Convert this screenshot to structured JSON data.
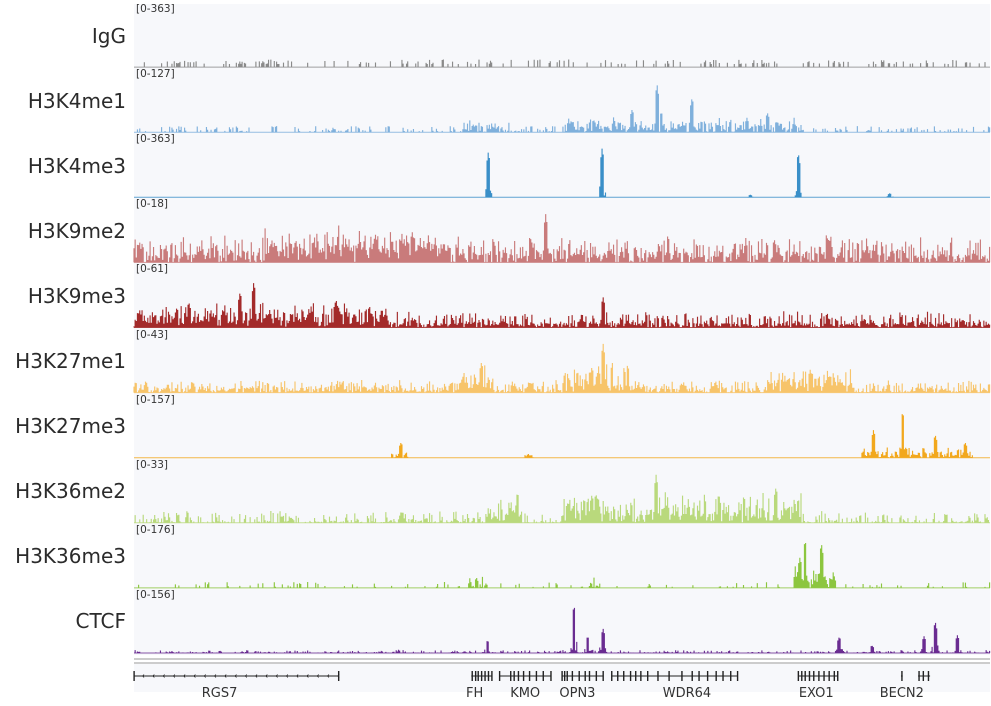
{
  "colors": {
    "track_background": "#f7f8fb",
    "baseline": "#b5b5b5",
    "gene_line": "#222222"
  },
  "chart_data": {
    "type": "area",
    "tracks": [
      {
        "name": "IgG",
        "range_label": "[0-363]",
        "ylim": [
          0,
          363
        ],
        "color": "#8a8a8a",
        "peaks": [],
        "pattern": "sparse",
        "density": 0.22,
        "base": 0.06,
        "noise": 0.09,
        "start": 0.0,
        "end": 1.0,
        "regions": []
      },
      {
        "name": "H3K4me1",
        "range_label": "[0-127]",
        "ylim": [
          0,
          127
        ],
        "color": "#7fb0dc",
        "peaks": [
          [
            0.611,
            0.95
          ],
          [
            0.652,
            0.68
          ],
          [
            0.582,
            0.45
          ],
          [
            0.74,
            0.38
          ],
          [
            0.616,
            0.4
          ]
        ],
        "pattern": "sparse",
        "density": 0.3,
        "base": 0.02,
        "noise": 0.1,
        "start": 0.0,
        "end": 1.0,
        "regions": [
          [
            0.385,
            0.44,
            0.15
          ],
          [
            0.5,
            0.78,
            0.22
          ]
        ]
      },
      {
        "name": "H3K4me3",
        "range_label": "[0-363]",
        "ylim": [
          0,
          363
        ],
        "color": "#3a8fc8",
        "peaks": [
          [
            0.414,
            0.9
          ],
          [
            0.547,
            0.98
          ],
          [
            0.776,
            0.88
          ],
          [
            0.883,
            0.08
          ],
          [
            0.72,
            0.05
          ]
        ],
        "pattern": "none",
        "density": 0.0,
        "base": 0.0,
        "noise": 0.0,
        "start": 0.0,
        "end": 1.0,
        "regions": []
      },
      {
        "name": "H3K9me2",
        "range_label": "[0-18]",
        "ylim": [
          0,
          18
        ],
        "color": "#c97b7b",
        "peaks": [
          [
            0.481,
            0.95
          ],
          [
            0.748,
            0.45
          ],
          [
            0.325,
            0.6
          ],
          [
            0.282,
            0.55
          ]
        ],
        "pattern": "dense",
        "density": 0.9,
        "base": 0.2,
        "noise": 0.35,
        "start": 0.0,
        "end": 1.0,
        "regions": [
          [
            0.15,
            0.37,
            0.25
          ]
        ]
      },
      {
        "name": "H3K9me3",
        "range_label": "[0-61]",
        "ylim": [
          0,
          61
        ],
        "color": "#a32a2a",
        "peaks": [
          [
            0.14,
            0.9
          ],
          [
            0.124,
            0.7
          ],
          [
            0.548,
            0.6
          ],
          [
            0.064,
            0.5
          ],
          [
            0.236,
            0.55
          ]
        ],
        "pattern": "dense",
        "density": 0.95,
        "base": 0.08,
        "noise": 0.25,
        "start": 0.0,
        "end": 1.0,
        "regions": [
          [
            0.0,
            0.3,
            0.25
          ]
        ]
      },
      {
        "name": "H3K27me1",
        "range_label": "[0-43]",
        "ylim": [
          0,
          43
        ],
        "color": "#f7c46a",
        "peaks": [
          [
            0.548,
            0.97
          ],
          [
            0.406,
            0.6
          ],
          [
            0.535,
            0.5
          ],
          [
            0.79,
            0.45
          ]
        ],
        "pattern": "dense",
        "density": 0.85,
        "base": 0.05,
        "noise": 0.2,
        "start": 0.0,
        "end": 1.0,
        "regions": [
          [
            0.38,
            0.42,
            0.35
          ],
          [
            0.5,
            0.58,
            0.4
          ],
          [
            0.74,
            0.84,
            0.3
          ]
        ]
      },
      {
        "name": "H3K27me3",
        "range_label": "[0-157]",
        "ylim": [
          0,
          157
        ],
        "color": "#f2a81d",
        "peaks": [
          [
            0.898,
            0.92
          ],
          [
            0.864,
            0.55
          ],
          [
            0.936,
            0.45
          ],
          [
            0.312,
            0.3
          ],
          [
            0.971,
            0.3
          ]
        ],
        "pattern": "none",
        "density": 0.0,
        "base": 0.0,
        "noise": 0.0,
        "start": 0.0,
        "end": 1.0,
        "regions": [
          [
            0.85,
            0.98,
            0.2
          ],
          [
            0.3,
            0.32,
            0.1
          ],
          [
            0.456,
            0.47,
            0.08
          ]
        ]
      },
      {
        "name": "H3K36me2",
        "range_label": "[0-33]",
        "ylim": [
          0,
          33
        ],
        "color": "#b9d97c",
        "peaks": [
          [
            0.61,
            0.95
          ],
          [
            0.448,
            0.6
          ],
          [
            0.75,
            0.7
          ],
          [
            0.535,
            0.55
          ]
        ],
        "pattern": "dense",
        "density": 0.6,
        "base": 0.02,
        "noise": 0.22,
        "start": 0.0,
        "end": 1.0,
        "regions": [
          [
            0.41,
            0.45,
            0.3
          ],
          [
            0.5,
            0.78,
            0.45
          ]
        ]
      },
      {
        "name": "H3K36me3",
        "range_label": "[0-176]",
        "ylim": [
          0,
          176
        ],
        "color": "#8cc63f",
        "peaks": [
          [
            0.784,
            0.95
          ],
          [
            0.803,
            0.88
          ],
          [
            0.778,
            0.6
          ]
        ],
        "pattern": "sparse",
        "density": 0.12,
        "base": 0.02,
        "noise": 0.1,
        "start": 0.0,
        "end": 1.0,
        "regions": [
          [
            0.77,
            0.82,
            0.35
          ],
          [
            0.39,
            0.415,
            0.2
          ],
          [
            0.53,
            0.545,
            0.15
          ]
        ]
      },
      {
        "name": "CTCF",
        "range_label": "[0-156]",
        "ylim": [
          0,
          156
        ],
        "color": "#6a2c91",
        "peaks": [
          [
            0.514,
            0.95
          ],
          [
            0.548,
            0.48
          ],
          [
            0.53,
            0.33
          ],
          [
            0.936,
            0.62
          ],
          [
            0.923,
            0.33
          ],
          [
            0.962,
            0.35
          ],
          [
            0.413,
            0.25
          ],
          [
            0.824,
            0.32
          ],
          [
            0.862,
            0.15
          ]
        ],
        "pattern": "dense",
        "density": 0.5,
        "base": 0.02,
        "noise": 0.05,
        "start": 0.0,
        "end": 1.0,
        "regions": []
      }
    ],
    "genes": [
      {
        "name": "RGS7",
        "start": 0.0,
        "end": 0.239,
        "exons": [
          0.0,
          0.239
        ],
        "label_x": 0.1
      },
      {
        "name": "FH",
        "start": 0.394,
        "end": 0.418,
        "exons": [
          0.395,
          0.399,
          0.402,
          0.406,
          0.41,
          0.414,
          0.418
        ],
        "label_x": 0.398
      },
      {
        "name": "KMO",
        "start": 0.427,
        "end": 0.487,
        "exons": [
          0.427,
          0.44,
          0.444,
          0.449,
          0.455,
          0.462,
          0.47,
          0.478,
          0.487
        ],
        "label_x": 0.457
      },
      {
        "name": "OPN3",
        "start": 0.5,
        "end": 0.548,
        "exons": [
          0.5,
          0.503,
          0.506,
          0.512,
          0.52,
          0.527,
          0.532,
          0.54,
          0.548
        ],
        "label_x": 0.518
      },
      {
        "name": "WDR64",
        "start": 0.558,
        "end": 0.705,
        "exons": [
          0.558,
          0.565,
          0.572,
          0.58,
          0.586,
          0.592,
          0.6,
          0.612,
          0.625,
          0.64,
          0.652,
          0.66,
          0.67,
          0.68,
          0.688,
          0.697,
          0.705
        ],
        "label_x": 0.646
      },
      {
        "name": "EXO1",
        "start": 0.776,
        "end": 0.822,
        "exons": [
          0.776,
          0.78,
          0.784,
          0.789,
          0.794,
          0.8,
          0.806,
          0.812,
          0.818,
          0.822
        ],
        "label_x": 0.797
      },
      {
        "name": "BECN2",
        "start": 0.896,
        "end": 0.898,
        "exons": [
          0.897
        ],
        "label_x": 0.897
      },
      {
        "name": "",
        "start": 0.916,
        "end": 0.93,
        "exons": [
          0.917,
          0.922,
          0.928
        ],
        "label_x": 0.92
      }
    ]
  }
}
